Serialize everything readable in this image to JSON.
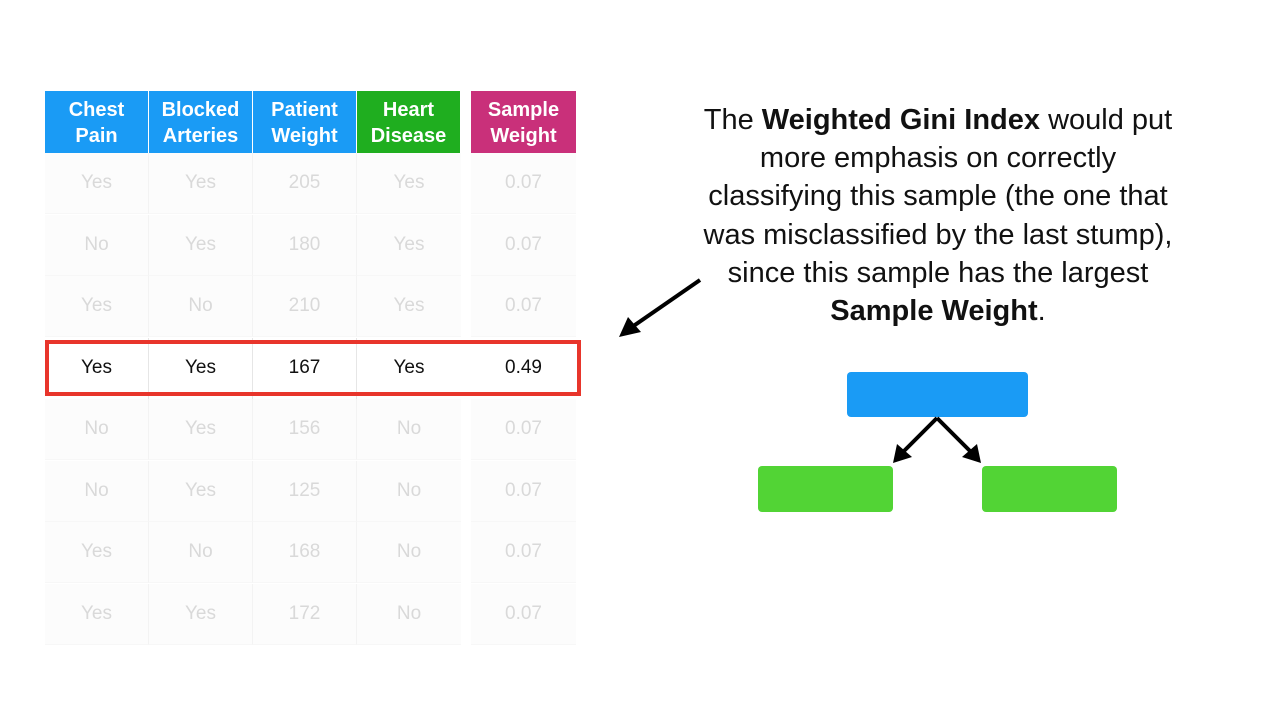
{
  "table": {
    "headers": [
      {
        "label": "Chest\nPain",
        "color": "#1a9bf5"
      },
      {
        "label": "Blocked\nArteries",
        "color": "#1a9bf5"
      },
      {
        "label": "Patient\nWeight",
        "color": "#1a9bf5"
      },
      {
        "label": "Heart\nDisease",
        "color": "#1fae1f"
      },
      {
        "label": "Sample\nWeight",
        "color": "#c9307a"
      }
    ],
    "rows": [
      [
        "Yes",
        "Yes",
        "205",
        "Yes",
        "0.07"
      ],
      [
        "No",
        "Yes",
        "180",
        "Yes",
        "0.07"
      ],
      [
        "Yes",
        "No",
        "210",
        "Yes",
        "0.07"
      ],
      [
        "Yes",
        "Yes",
        "167",
        "Yes",
        "0.49"
      ],
      [
        "No",
        "Yes",
        "156",
        "No",
        "0.07"
      ],
      [
        "No",
        "Yes",
        "125",
        "No",
        "0.07"
      ],
      [
        "Yes",
        "No",
        "168",
        "No",
        "0.07"
      ],
      [
        "Yes",
        "Yes",
        "172",
        "No",
        "0.07"
      ]
    ],
    "highlighted_row": 3,
    "highlight_color": "#e8352b"
  },
  "explanation": {
    "part1": "The ",
    "bold1": "Weighted Gini Index",
    "part2": " would put more emphasis on correctly classifying this sample (the one that was misclassified by the last stump), since this sample has the largest ",
    "bold2": "Sample Weight",
    "part3": "."
  },
  "stump": {
    "root_color": "#1a9bf5",
    "leaf_color": "#52d435"
  }
}
